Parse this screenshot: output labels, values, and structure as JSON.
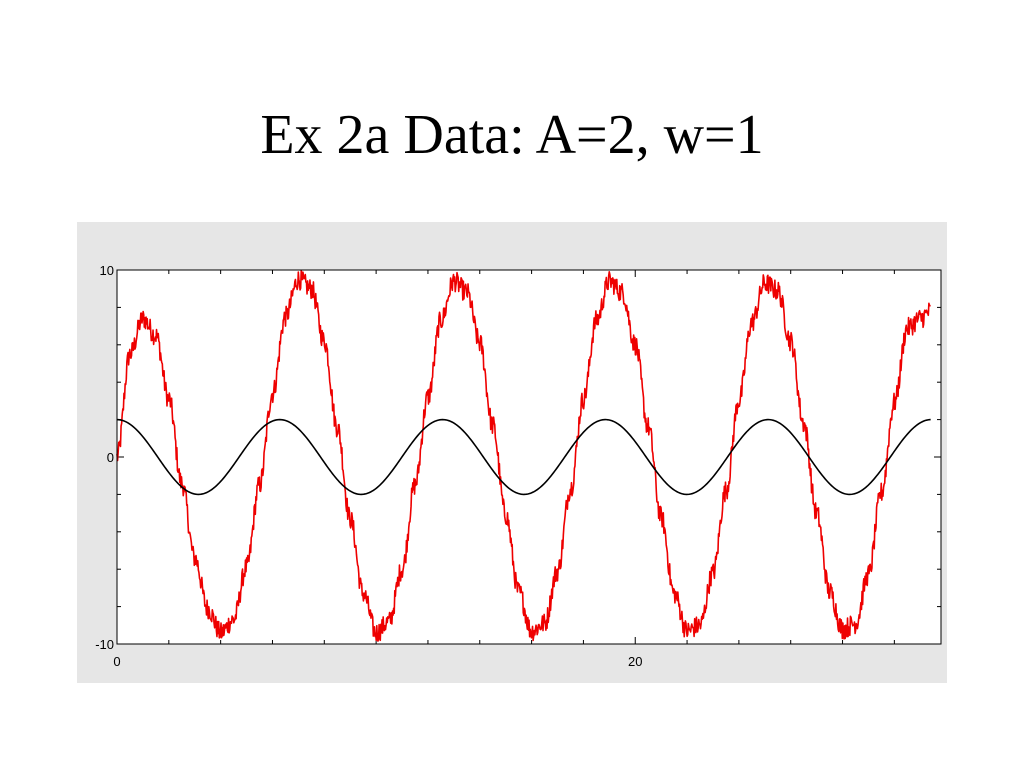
{
  "slide": {
    "title": "Ex 2a Data: A=2, w=1"
  },
  "colors": {
    "panel_background": "#e6e6e6",
    "plot_background": "#ffffff",
    "noisy_series": "#ee0000",
    "clean_series": "#000000"
  },
  "chart_data": {
    "type": "line",
    "title": "",
    "xlabel": "",
    "ylabel": "",
    "xlim": [
      0,
      31.8
    ],
    "ylim": [
      -10,
      10
    ],
    "grid": false,
    "legend": "none",
    "x_ticks": [
      {
        "value": 0,
        "label": "0"
      },
      {
        "value": 20,
        "label": "20"
      }
    ],
    "y_ticks": [
      {
        "value": 10,
        "label": "10"
      },
      {
        "value": 0,
        "label": "0"
      },
      {
        "value": -10,
        "label": "-10"
      }
    ],
    "x_minor_tick_step": 2,
    "y_minor_tick_step": 2,
    "series": [
      {
        "color": "#ee0000",
        "x": [
          0,
          0.5,
          1,
          1.5,
          2,
          2.5,
          3,
          3.5,
          4,
          4.5,
          5,
          5.5,
          6,
          6.5,
          7,
          7.5,
          8,
          8.5,
          9,
          9.5,
          10,
          10.5,
          11,
          11.5,
          12,
          12.5,
          13,
          13.5,
          14,
          14.5,
          15,
          15.5,
          16,
          16.5,
          17,
          17.5,
          18,
          18.5,
          19,
          19.5,
          20,
          20.5,
          21,
          21.5,
          22,
          22.5,
          23,
          23.5,
          24,
          24.5,
          25,
          25.5,
          26,
          26.5,
          27,
          27.5,
          28,
          28.5,
          29,
          29.5,
          30,
          30.5,
          31,
          31.4
        ],
        "y": [
          0,
          5.5,
          7.4,
          6.5,
          3.1,
          -1.4,
          -5.4,
          -8.1,
          -9.4,
          -8.7,
          -5.9,
          -1.5,
          3.4,
          7.5,
          9.5,
          9.0,
          6.2,
          1.6,
          -3.3,
          -7.3,
          -9.4,
          -8.8,
          -6.0,
          -1.5,
          3.2,
          7.3,
          9.4,
          8.8,
          6.1,
          1.7,
          -3.1,
          -7.2,
          -9.3,
          -8.9,
          -6.1,
          -1.7,
          3.1,
          7.3,
          9.4,
          8.8,
          6.0,
          1.6,
          -3.2,
          -7.3,
          -9.3,
          -9.0,
          -6.2,
          -1.8,
          3.0,
          7.2,
          9.3,
          8.9,
          6.2,
          1.8,
          -3.0,
          -7.2,
          -9.2,
          -8.9,
          -6.3,
          -1.9,
          2.9,
          6.9,
          7.4,
          7.8
        ]
      },
      {
        "color": "#000000",
        "function": "2*cos(x)",
        "x_range": [
          0,
          31.4
        ]
      }
    ]
  }
}
